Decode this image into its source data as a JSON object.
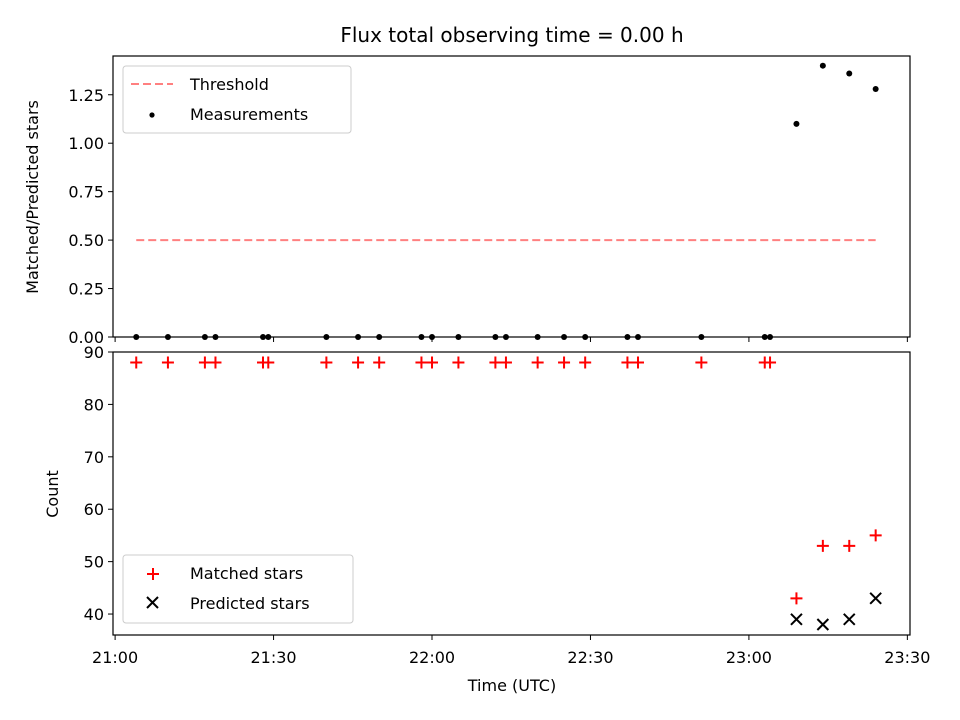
{
  "chart_data": [
    {
      "type": "scatter",
      "title": "Flux total observing time = 0.00 h",
      "xlabel": "",
      "ylabel": "Matched/Predicted stars",
      "xlim": [
        "21:00",
        "23:30"
      ],
      "ylim": [
        0,
        1.45
      ],
      "yticks": [
        "0.00",
        "0.25",
        "0.50",
        "0.75",
        "1.00",
        "1.25"
      ],
      "legend_position": "top-left",
      "series": [
        {
          "name": "Threshold",
          "kind": "dashed-line",
          "color": "#ff8080",
          "points": [
            {
              "x": "21:04",
              "y": 0.5
            },
            {
              "x": "23:24",
              "y": 0.5
            }
          ]
        },
        {
          "name": "Measurements",
          "kind": "dot",
          "color": "#000000",
          "points": [
            {
              "x": "21:04",
              "y": 0
            },
            {
              "x": "21:10",
              "y": 0
            },
            {
              "x": "21:17",
              "y": 0
            },
            {
              "x": "21:19",
              "y": 0
            },
            {
              "x": "21:28",
              "y": 0
            },
            {
              "x": "21:29",
              "y": 0
            },
            {
              "x": "21:40",
              "y": 0
            },
            {
              "x": "21:46",
              "y": 0
            },
            {
              "x": "21:50",
              "y": 0
            },
            {
              "x": "21:58",
              "y": 0
            },
            {
              "x": "22:00",
              "y": 0
            },
            {
              "x": "22:05",
              "y": 0
            },
            {
              "x": "22:12",
              "y": 0
            },
            {
              "x": "22:14",
              "y": 0
            },
            {
              "x": "22:20",
              "y": 0
            },
            {
              "x": "22:25",
              "y": 0
            },
            {
              "x": "22:29",
              "y": 0
            },
            {
              "x": "22:37",
              "y": 0
            },
            {
              "x": "22:39",
              "y": 0
            },
            {
              "x": "22:51",
              "y": 0
            },
            {
              "x": "23:03",
              "y": 0
            },
            {
              "x": "23:04",
              "y": 0
            },
            {
              "x": "23:09",
              "y": 1.1
            },
            {
              "x": "23:14",
              "y": 1.4
            },
            {
              "x": "23:19",
              "y": 1.36
            },
            {
              "x": "23:24",
              "y": 1.28
            }
          ]
        }
      ]
    },
    {
      "type": "scatter",
      "title": "",
      "xlabel": "Time (UTC)",
      "ylabel": "Count",
      "xlim": [
        "21:00",
        "23:30"
      ],
      "ylim": [
        36,
        90
      ],
      "xticks": [
        "21:00",
        "21:30",
        "22:00",
        "22:30",
        "23:00",
        "23:30"
      ],
      "yticks": [
        40,
        50,
        60,
        70,
        80,
        90
      ],
      "legend_position": "bottom-left",
      "series": [
        {
          "name": "Matched stars",
          "kind": "plus",
          "color": "#ff0000",
          "points": [
            {
              "x": "21:04",
              "y": 88
            },
            {
              "x": "21:10",
              "y": 88
            },
            {
              "x": "21:17",
              "y": 88
            },
            {
              "x": "21:19",
              "y": 88
            },
            {
              "x": "21:28",
              "y": 88
            },
            {
              "x": "21:29",
              "y": 88
            },
            {
              "x": "21:40",
              "y": 88
            },
            {
              "x": "21:46",
              "y": 88
            },
            {
              "x": "21:50",
              "y": 88
            },
            {
              "x": "21:58",
              "y": 88
            },
            {
              "x": "22:00",
              "y": 88
            },
            {
              "x": "22:05",
              "y": 88
            },
            {
              "x": "22:12",
              "y": 88
            },
            {
              "x": "22:14",
              "y": 88
            },
            {
              "x": "22:20",
              "y": 88
            },
            {
              "x": "22:25",
              "y": 88
            },
            {
              "x": "22:29",
              "y": 88
            },
            {
              "x": "22:37",
              "y": 88
            },
            {
              "x": "22:39",
              "y": 88
            },
            {
              "x": "22:51",
              "y": 88
            },
            {
              "x": "23:03",
              "y": 88
            },
            {
              "x": "23:04",
              "y": 88
            },
            {
              "x": "23:09",
              "y": 43
            },
            {
              "x": "23:14",
              "y": 53
            },
            {
              "x": "23:19",
              "y": 53
            },
            {
              "x": "23:24",
              "y": 55
            }
          ]
        },
        {
          "name": "Predicted stars",
          "kind": "cross",
          "color": "#000000",
          "points": [
            {
              "x": "23:09",
              "y": 39
            },
            {
              "x": "23:14",
              "y": 38
            },
            {
              "x": "23:19",
              "y": 39
            },
            {
              "x": "23:24",
              "y": 43
            }
          ]
        }
      ]
    }
  ]
}
